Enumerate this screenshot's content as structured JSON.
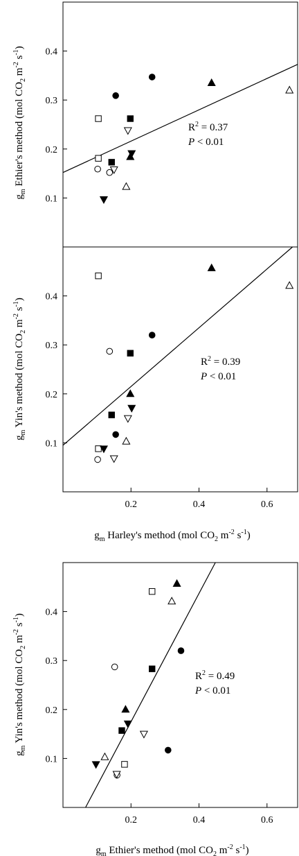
{
  "chart_data": [
    {
      "type": "scatter",
      "xlabel": {
        "main": "Harley's method (mol CO",
        "sub2": "2",
        "mid": " m",
        "sup1": "-2",
        "mid2": " s",
        "sup2": "-1",
        "end": ")"
      },
      "ylabel": {
        "main": "Ethier's method (mol CO",
        "sub2": "2",
        "mid": " m",
        "sup1": "-2",
        "mid2": " s",
        "sup2": "-1",
        "end": ")"
      },
      "xlim": [
        0,
        0.69
      ],
      "ylim": [
        0,
        0.5
      ],
      "yticks": [
        0.1,
        0.2,
        0.3,
        0.4
      ],
      "xticks": [],
      "annotation": {
        "r2": "= 0.37",
        "p": "< 0.01"
      },
      "fit": {
        "slope": 0.32,
        "intercept": 0.152
      },
      "points": [
        {
          "x": 0.155,
          "y": 0.309,
          "m": "circle-filled"
        },
        {
          "x": 0.262,
          "y": 0.347,
          "m": "circle-filled"
        },
        {
          "x": 0.102,
          "y": 0.159,
          "m": "circle-open"
        },
        {
          "x": 0.137,
          "y": 0.152,
          "m": "circle-open"
        },
        {
          "x": 0.437,
          "y": 0.335,
          "m": "triangle-up-filled"
        },
        {
          "x": 0.198,
          "y": 0.184,
          "m": "triangle-up-filled"
        },
        {
          "x": 0.666,
          "y": 0.32,
          "m": "triangle-up-open"
        },
        {
          "x": 0.186,
          "y": 0.123,
          "m": "triangle-up-open"
        },
        {
          "x": 0.198,
          "y": 0.262,
          "m": "square-filled"
        },
        {
          "x": 0.143,
          "y": 0.173,
          "m": "square-filled"
        },
        {
          "x": 0.104,
          "y": 0.262,
          "m": "square-open"
        },
        {
          "x": 0.104,
          "y": 0.181,
          "m": "square-open"
        },
        {
          "x": 0.12,
          "y": 0.097,
          "m": "triangle-down-filled"
        },
        {
          "x": 0.202,
          "y": 0.191,
          "m": "triangle-down-filled"
        },
        {
          "x": 0.191,
          "y": 0.238,
          "m": "triangle-down-open"
        },
        {
          "x": 0.15,
          "y": 0.158,
          "m": "triangle-down-open"
        }
      ]
    },
    {
      "type": "scatter",
      "xlabel": {
        "main": "Harley's method (mol CO",
        "sub2": "2",
        "mid": " m",
        "sup1": "-2",
        "mid2": " s",
        "sup2": "-1",
        "end": ")"
      },
      "ylabel": {
        "main": "Yin's method (mol CO",
        "sub2": "2",
        "mid": " m",
        "sup1": "-2",
        "mid2": " s",
        "sup2": "-1",
        "end": ")"
      },
      "xlim": [
        0,
        0.69
      ],
      "ylim": [
        0,
        0.5
      ],
      "yticks": [
        0.1,
        0.2,
        0.3,
        0.4
      ],
      "xticks": [
        0.2,
        0.4,
        0.6
      ],
      "annotation": {
        "r2": "= 0.39",
        "p": "< 0.01"
      },
      "fit": {
        "slope": 0.6,
        "intercept": 0.095
      },
      "points": [
        {
          "x": 0.262,
          "y": 0.32,
          "m": "circle-filled"
        },
        {
          "x": 0.155,
          "y": 0.117,
          "m": "circle-filled"
        },
        {
          "x": 0.137,
          "y": 0.287,
          "m": "circle-open"
        },
        {
          "x": 0.102,
          "y": 0.066,
          "m": "circle-open"
        },
        {
          "x": 0.437,
          "y": 0.457,
          "m": "triangle-up-filled"
        },
        {
          "x": 0.198,
          "y": 0.2,
          "m": "triangle-up-filled"
        },
        {
          "x": 0.666,
          "y": 0.421,
          "m": "triangle-up-open"
        },
        {
          "x": 0.186,
          "y": 0.103,
          "m": "triangle-up-open"
        },
        {
          "x": 0.198,
          "y": 0.283,
          "m": "square-filled"
        },
        {
          "x": 0.143,
          "y": 0.157,
          "m": "square-filled"
        },
        {
          "x": 0.104,
          "y": 0.441,
          "m": "square-open"
        },
        {
          "x": 0.104,
          "y": 0.088,
          "m": "square-open"
        },
        {
          "x": 0.12,
          "y": 0.088,
          "m": "triangle-down-filled"
        },
        {
          "x": 0.202,
          "y": 0.171,
          "m": "triangle-down-filled"
        },
        {
          "x": 0.191,
          "y": 0.15,
          "m": "triangle-down-open"
        },
        {
          "x": 0.15,
          "y": 0.068,
          "m": "triangle-down-open"
        }
      ]
    },
    {
      "type": "scatter",
      "xlabel": {
        "main": "Ethier's method (mol CO",
        "sub2": "2",
        "mid": " m",
        "sup1": "-2",
        "mid2": " s",
        "sup2": "-1",
        "end": ")"
      },
      "ylabel": {
        "main": "Yin's method (mol CO",
        "sub2": "2",
        "mid": " m",
        "sup1": "-2",
        "mid2": " s",
        "sup2": "-1",
        "end": ")"
      },
      "xlim": [
        0,
        0.69
      ],
      "ylim": [
        0,
        0.5
      ],
      "yticks": [
        0.1,
        0.2,
        0.3,
        0.4
      ],
      "xticks": [
        0.2,
        0.4,
        0.6
      ],
      "annotation": {
        "r2": "= 0.49",
        "p": "< 0.01"
      },
      "fit": {
        "slope": 1.31,
        "intercept": -0.087
      },
      "points": [
        {
          "x": 0.347,
          "y": 0.32,
          "m": "circle-filled"
        },
        {
          "x": 0.309,
          "y": 0.117,
          "m": "circle-filled"
        },
        {
          "x": 0.152,
          "y": 0.287,
          "m": "circle-open"
        },
        {
          "x": 0.159,
          "y": 0.066,
          "m": "circle-open"
        },
        {
          "x": 0.335,
          "y": 0.457,
          "m": "triangle-up-filled"
        },
        {
          "x": 0.184,
          "y": 0.2,
          "m": "triangle-up-filled"
        },
        {
          "x": 0.32,
          "y": 0.421,
          "m": "triangle-up-open"
        },
        {
          "x": 0.123,
          "y": 0.103,
          "m": "triangle-up-open"
        },
        {
          "x": 0.262,
          "y": 0.283,
          "m": "square-filled"
        },
        {
          "x": 0.173,
          "y": 0.157,
          "m": "square-filled"
        },
        {
          "x": 0.262,
          "y": 0.441,
          "m": "square-open"
        },
        {
          "x": 0.181,
          "y": 0.088,
          "m": "square-open"
        },
        {
          "x": 0.097,
          "y": 0.088,
          "m": "triangle-down-filled"
        },
        {
          "x": 0.191,
          "y": 0.171,
          "m": "triangle-down-filled"
        },
        {
          "x": 0.238,
          "y": 0.15,
          "m": "triangle-down-open"
        },
        {
          "x": 0.158,
          "y": 0.068,
          "m": "triangle-down-open"
        }
      ]
    }
  ],
  "shared": {
    "gm_main": "g",
    "gm_sub": "m",
    "r_letter": "R",
    "r_sup": "2",
    "p_letter": "P"
  }
}
